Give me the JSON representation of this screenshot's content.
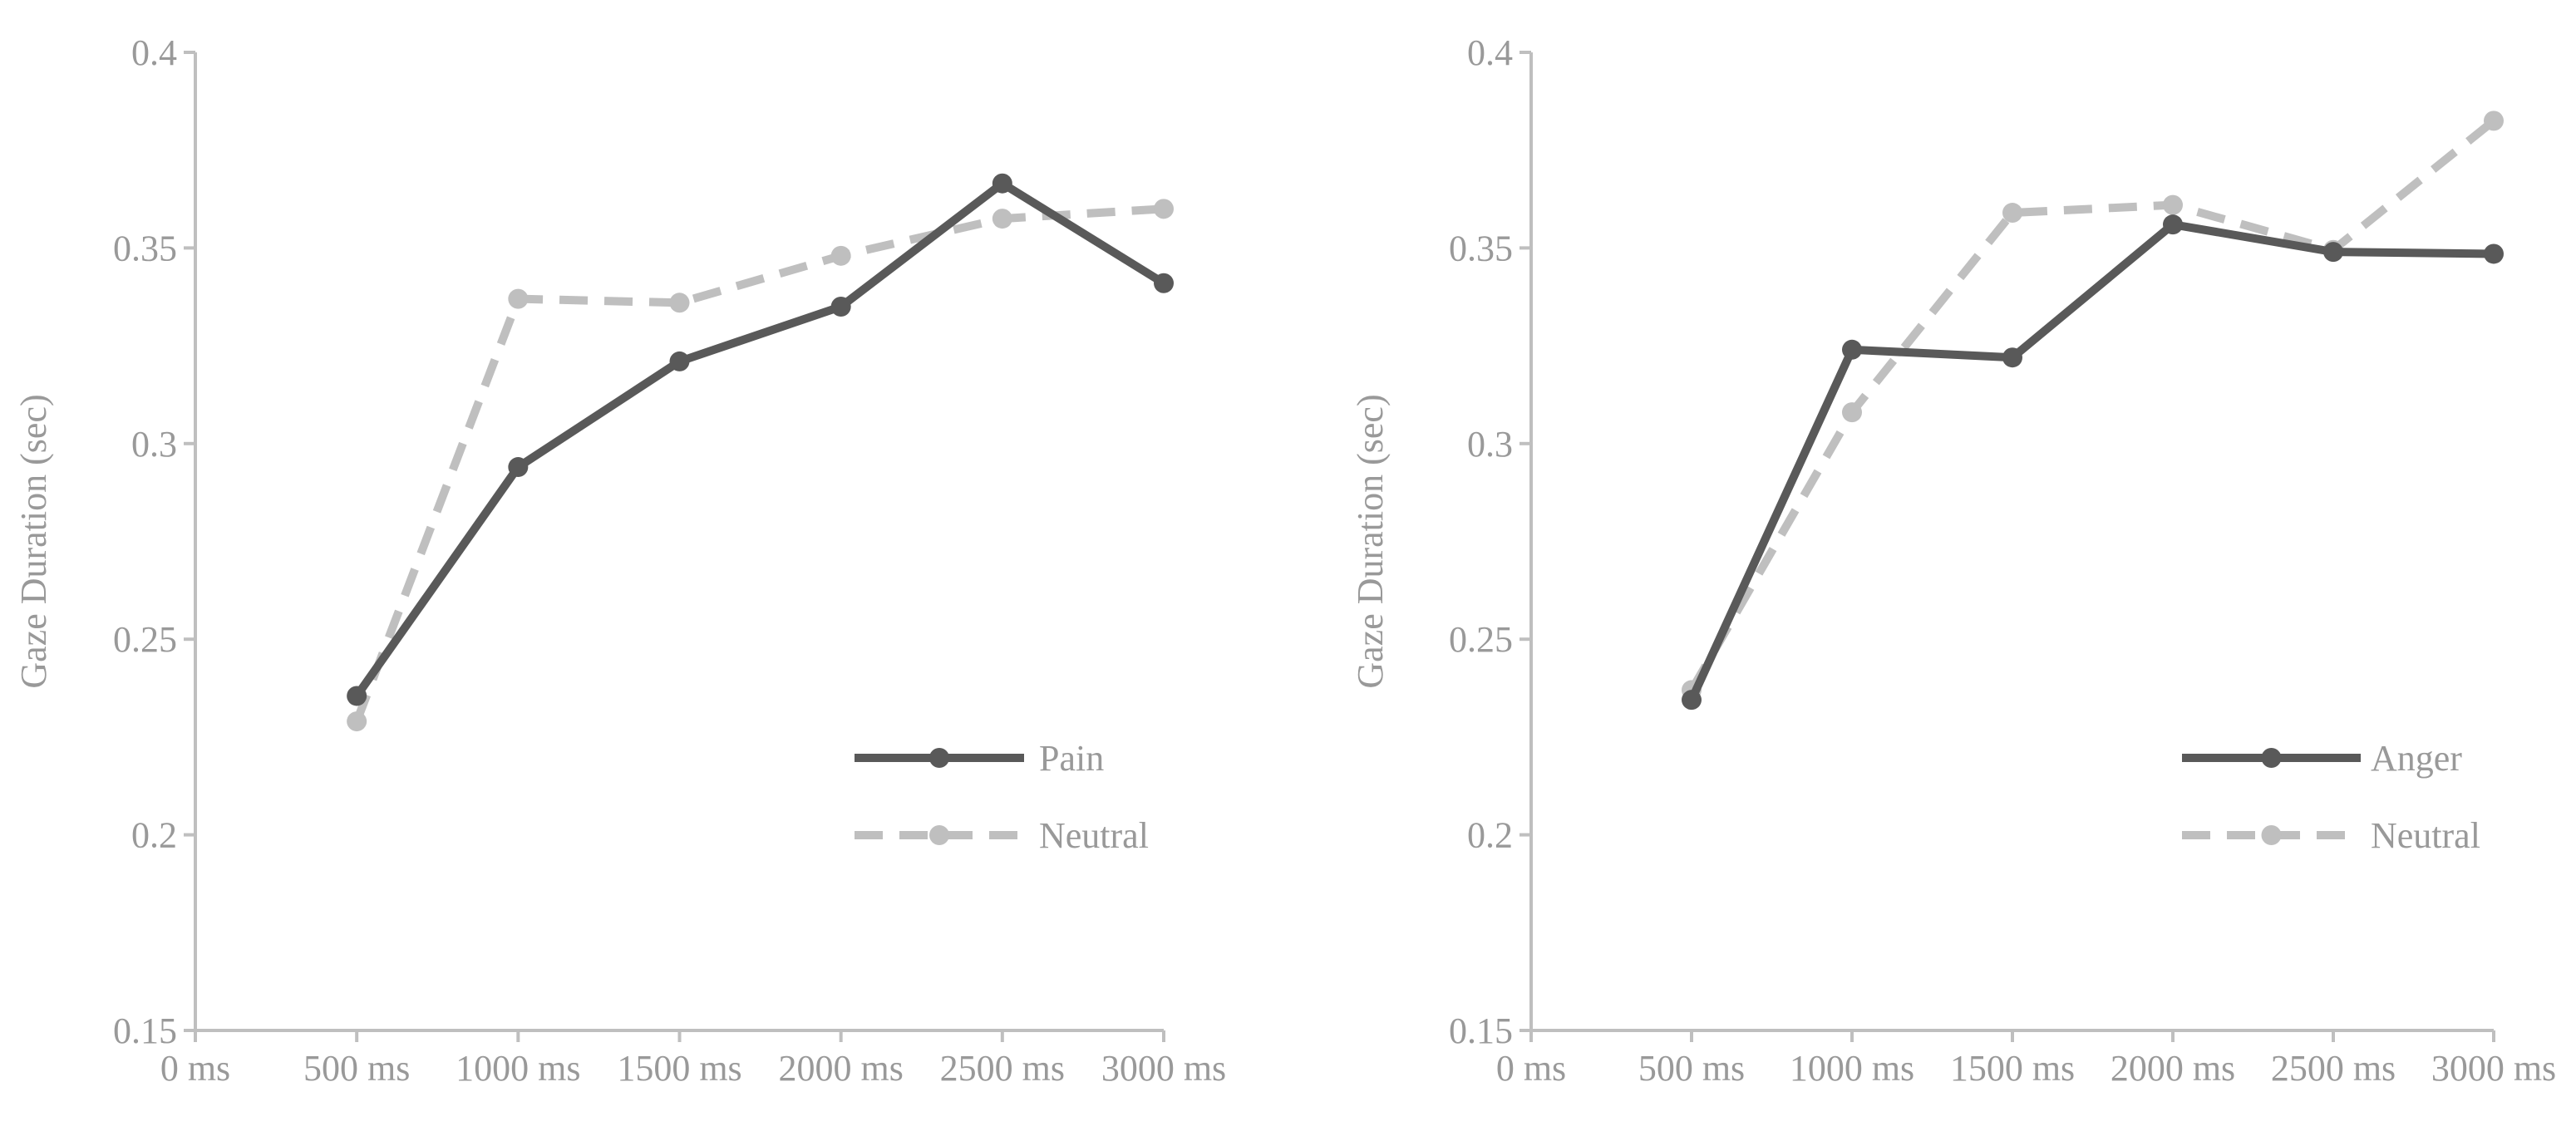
{
  "chart_data": [
    {
      "type": "line",
      "title": "",
      "xlabel": "",
      "ylabel": "Gaze Duration (sec)",
      "categories": [
        "0 ms",
        "500 ms",
        "1000 ms",
        "1500 ms",
        "2000 ms",
        "2500 ms",
        "3000 ms"
      ],
      "ylim": [
        0.15,
        0.4
      ],
      "yticks": [
        "0.15",
        "0.2",
        "0.25",
        "0.3",
        "0.35",
        "0.4"
      ],
      "grid": false,
      "legend": "bottom-right",
      "series": [
        {
          "name": "Pain",
          "style": "solid",
          "color": "#595959",
          "values": [
            null,
            0.2355,
            0.294,
            0.321,
            0.335,
            0.3665,
            0.341
          ]
        },
        {
          "name": "Neutral",
          "style": "dashed",
          "color": "#bfbfbf",
          "values": [
            null,
            0.229,
            0.337,
            0.336,
            0.348,
            0.3575,
            0.36
          ]
        }
      ]
    },
    {
      "type": "line",
      "title": "",
      "xlabel": "",
      "ylabel": "Gaze Duration (sec)",
      "categories": [
        "0 ms",
        "500 ms",
        "1000 ms",
        "1500 ms",
        "2000 ms",
        "2500 ms",
        "3000 ms"
      ],
      "ylim": [
        0.15,
        0.4
      ],
      "yticks": [
        "0.15",
        "0.2",
        "0.25",
        "0.3",
        "0.35",
        "0.4"
      ],
      "grid": false,
      "legend": "bottom-right",
      "series": [
        {
          "name": "Anger",
          "style": "solid",
          "color": "#595959",
          "values": [
            null,
            0.2345,
            0.324,
            0.322,
            0.356,
            0.349,
            0.3485
          ]
        },
        {
          "name": "Neutral",
          "style": "dashed",
          "color": "#bfbfbf",
          "values": [
            null,
            0.237,
            0.308,
            0.359,
            0.361,
            0.3495,
            0.3825
          ]
        }
      ]
    }
  ]
}
